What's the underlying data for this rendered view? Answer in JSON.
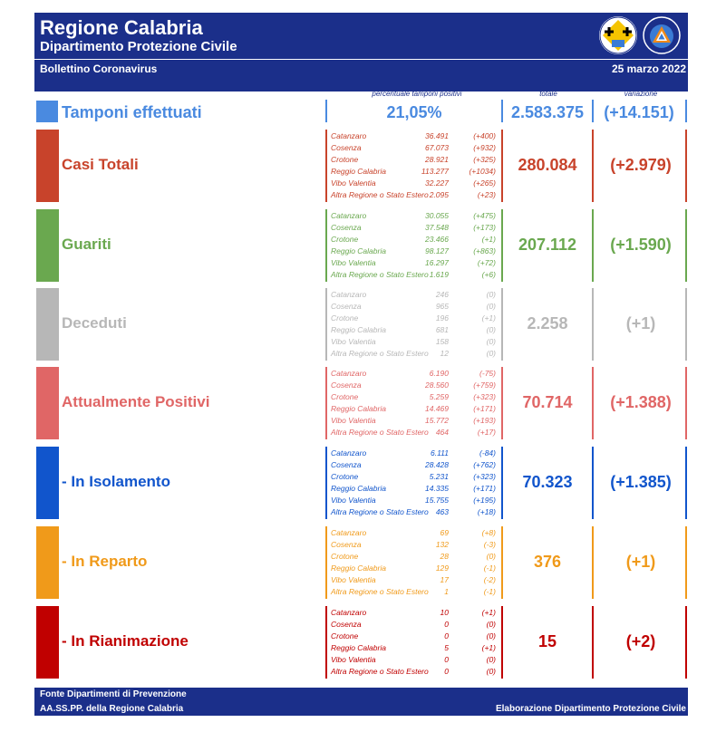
{
  "header": {
    "title": "Regione Calabria",
    "subtitle": "Dipartimento Protezione Civile",
    "bulletin": "Bollettino Coronavirus",
    "date": "25 marzo 2022"
  },
  "columns": {
    "percent_label": "percentuale tamponi positivi",
    "total_label": "totale",
    "variation_label": "variazione"
  },
  "tamponi": {
    "title": "Tamponi effettuati",
    "percent": "21,05%",
    "total": "2.583.375",
    "variation": "(+14.151)",
    "color": "#4a8ae0"
  },
  "sections": [
    {
      "title": "Casi Totali",
      "color": "#c8432b",
      "total": "280.084",
      "variation": "(+2.979)",
      "rows": [
        {
          "name": "Catanzaro",
          "value": "36.491",
          "delta": "(+400)"
        },
        {
          "name": "Cosenza",
          "value": "67.073",
          "delta": "(+932)"
        },
        {
          "name": "Crotone",
          "value": "28.921",
          "delta": "(+325)"
        },
        {
          "name": "Reggio Calabria",
          "value": "113.277",
          "delta": "(+1034)"
        },
        {
          "name": "Vibo Valentia",
          "value": "32.227",
          "delta": "(+265)"
        },
        {
          "name": "Altra Regione o Stato Estero",
          "value": "2.095",
          "delta": "(+23)"
        }
      ]
    },
    {
      "title": "Guariti",
      "color": "#6aa84f",
      "total": "207.112",
      "variation": "(+1.590)",
      "rows": [
        {
          "name": "Catanzaro",
          "value": "30.055",
          "delta": "(+475)"
        },
        {
          "name": "Cosenza",
          "value": "37.548",
          "delta": "(+173)"
        },
        {
          "name": "Crotone",
          "value": "23.466",
          "delta": "(+1)"
        },
        {
          "name": "Reggio Calabria",
          "value": "98.127",
          "delta": "(+863)"
        },
        {
          "name": "Vibo Valentia",
          "value": "16.297",
          "delta": "(+72)"
        },
        {
          "name": "Altra Regione o Stato Estero",
          "value": "1.619",
          "delta": "(+6)"
        }
      ]
    },
    {
      "title": "Deceduti",
      "color": "#b7b7b7",
      "total": "2.258",
      "variation": "(+1)",
      "rows": [
        {
          "name": "Catanzaro",
          "value": "246",
          "delta": "(0)"
        },
        {
          "name": "Cosenza",
          "value": "965",
          "delta": "(0)"
        },
        {
          "name": "Crotone",
          "value": "196",
          "delta": "(+1)"
        },
        {
          "name": "Reggio Calabria",
          "value": "681",
          "delta": "(0)"
        },
        {
          "name": "Vibo Valentia",
          "value": "158",
          "delta": "(0)"
        },
        {
          "name": "Altra Regione o Stato Estero",
          "value": "12",
          "delta": "(0)"
        }
      ]
    },
    {
      "title": "Attualmente Positivi",
      "color": "#e06666",
      "total": "70.714",
      "variation": "(+1.388)",
      "rows": [
        {
          "name": "Catanzaro",
          "value": "6.190",
          "delta": "(-75)"
        },
        {
          "name": "Cosenza",
          "value": "28.560",
          "delta": "(+759)"
        },
        {
          "name": "Crotone",
          "value": "5.259",
          "delta": "(+323)"
        },
        {
          "name": "Reggio Calabria",
          "value": "14.469",
          "delta": "(+171)"
        },
        {
          "name": "Vibo Valentia",
          "value": "15.772",
          "delta": "(+193)"
        },
        {
          "name": "Altra Regione o Stato Estero",
          "value": "464",
          "delta": "(+17)"
        }
      ]
    },
    {
      "title": " - In Isolamento",
      "color": "#1155cc",
      "total": "70.323",
      "variation": "(+1.385)",
      "rows": [
        {
          "name": "Catanzaro",
          "value": "6.111",
          "delta": "(-84)"
        },
        {
          "name": "Cosenza",
          "value": "28.428",
          "delta": "(+762)"
        },
        {
          "name": "Crotone",
          "value": "5.231",
          "delta": "(+323)"
        },
        {
          "name": "Reggio Calabria",
          "value": "14.335",
          "delta": "(+171)"
        },
        {
          "name": "Vibo Valentia",
          "value": "15.755",
          "delta": "(+195)"
        },
        {
          "name": "Altra Regione o Stato Estero",
          "value": "463",
          "delta": "(+18)"
        }
      ]
    },
    {
      "title": " - In Reparto",
      "color": "#f09a1a",
      "total": "376",
      "variation": "(+1)",
      "rows": [
        {
          "name": "Catanzaro",
          "value": "69",
          "delta": "(+8)"
        },
        {
          "name": "Cosenza",
          "value": "132",
          "delta": "(-3)"
        },
        {
          "name": "Crotone",
          "value": "28",
          "delta": "(0)"
        },
        {
          "name": "Reggio Calabria",
          "value": "129",
          "delta": "(-1)"
        },
        {
          "name": "Vibo Valentia",
          "value": "17",
          "delta": "(-2)"
        },
        {
          "name": "Altra Regione o Stato Estero",
          "value": "1",
          "delta": "(-1)"
        }
      ]
    },
    {
      "title": " - In Rianimazione",
      "color": "#c00000",
      "total": "15",
      "variation": "(+2)",
      "rows": [
        {
          "name": "Catanzaro",
          "value": "10",
          "delta": "(+1)"
        },
        {
          "name": "Cosenza",
          "value": "0",
          "delta": "(0)"
        },
        {
          "name": "Crotone",
          "value": "0",
          "delta": "(0)"
        },
        {
          "name": "Reggio Calabria",
          "value": "5",
          "delta": "(+1)"
        },
        {
          "name": "Vibo Valentia",
          "value": "0",
          "delta": "(0)"
        },
        {
          "name": "Altra Regione o Stato Estero",
          "value": "0",
          "delta": "(0)"
        }
      ]
    }
  ],
  "footer": {
    "line1": "Fonte Dipartimenti di Prevenzione",
    "line2": "AA.SS.PP.  della Regione Calabria",
    "credit": "Elaborazione Dipartimento Protezione Civile"
  }
}
